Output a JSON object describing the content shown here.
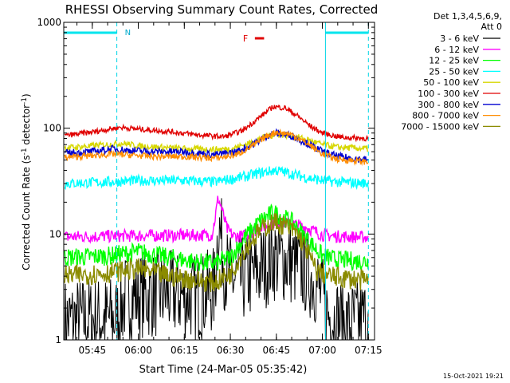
{
  "chart_data": {
    "type": "line",
    "title": "RHESSI Observing Summary Count Rates, Corrected",
    "xlabel": "Start Time (24-Mar-05 05:35:42)",
    "ylabel": "Corrected Count Rate (s⁻¹ detector⁻¹)",
    "ylabel_main": "Corrected Count Rate (s",
    "ylabel_sup1": "-1",
    "ylabel_mid": " detector",
    "ylabel_sup2": "-1",
    "ylabel_end": ")",
    "y_scale": "log",
    "ylim": [
      1,
      1000
    ],
    "xlim": [
      "05:35:42",
      "07:17:00"
    ],
    "x_ticks": [
      "05:45",
      "06:00",
      "06:15",
      "06:30",
      "06:45",
      "07:00",
      "07:15"
    ],
    "y_ticks": [
      "1",
      "10",
      "100",
      "1000"
    ],
    "grid": false,
    "legend_position": "right",
    "legend_header": [
      "Det 1,3,4,5,6,9,",
      "Att 0"
    ],
    "footer_date": "15-Oct-2021 19:21",
    "annotations": {
      "night_label": "N",
      "night_intervals": [
        [
          "05:35:42",
          "05:53:00"
        ],
        [
          "07:01:00",
          "07:15:00"
        ]
      ],
      "flare_label": "F",
      "flare_interval": [
        "06:38:00",
        "06:41:00"
      ]
    },
    "series": [
      {
        "name": "3 - 6 keV",
        "color": "#000000",
        "x": [
          "05:36",
          "05:53",
          "05:56",
          "06:10",
          "06:20",
          "06:25",
          "06:26",
          "06:27",
          "06:28",
          "06:30",
          "06:33",
          "06:38",
          "06:44",
          "06:48",
          "06:52",
          "06:55",
          "06:58",
          "07:02",
          "07:08",
          "07:15"
        ],
        "y": [
          1.5,
          1.6,
          2.6,
          2.7,
          2.5,
          3.0,
          13,
          9,
          5,
          3.8,
          3.6,
          4.2,
          6.0,
          5.7,
          5.0,
          4.3,
          3.5,
          1.7,
          1.4,
          1.6
        ]
      },
      {
        "name": "6 - 12 keV",
        "color": "#ff00ff",
        "x": [
          "05:36",
          "05:53",
          "06:10",
          "06:24",
          "06:25",
          "06:26",
          "06:27",
          "06:28",
          "06:29",
          "06:31",
          "06:34",
          "06:40",
          "06:45",
          "06:50",
          "06:55",
          "07:00",
          "07:05",
          "07:15"
        ],
        "y": [
          9.4,
          9.6,
          9.7,
          9.8,
          14,
          22,
          18,
          14,
          11,
          9.6,
          9.5,
          11.5,
          13,
          12.5,
          11.5,
          9.8,
          9.5,
          9.3
        ]
      },
      {
        "name": "12 - 25 keV",
        "color": "#00ff00",
        "x": [
          "05:36",
          "05:50",
          "06:00",
          "06:10",
          "06:20",
          "06:25",
          "06:30",
          "06:35",
          "06:40",
          "06:44",
          "06:46",
          "06:50",
          "06:55",
          "07:00",
          "07:05",
          "07:15"
        ],
        "y": [
          6.0,
          6.2,
          6.8,
          6.0,
          5.4,
          5.3,
          6.0,
          9.5,
          13.5,
          16,
          15,
          13,
          9,
          6.2,
          5.7,
          5.5
        ]
      },
      {
        "name": "25 - 50 keV",
        "color": "#00ffff",
        "x": [
          "05:36",
          "05:50",
          "06:00",
          "06:15",
          "06:25",
          "06:35",
          "06:40",
          "06:45",
          "06:50",
          "06:55",
          "07:00",
          "07:05",
          "07:15"
        ],
        "y": [
          30,
          31,
          32,
          32,
          31,
          35,
          38,
          40,
          37,
          34,
          32,
          31,
          30
        ]
      },
      {
        "name": "50 - 100 keV",
        "color": "#d7d700",
        "x": [
          "05:36",
          "05:50",
          "05:55",
          "06:00",
          "06:15",
          "06:25",
          "06:30",
          "06:35",
          "06:40",
          "06:45",
          "06:50",
          "06:55",
          "07:00",
          "07:05",
          "07:15"
        ],
        "y": [
          65,
          70,
          72,
          68,
          64,
          63,
          64,
          70,
          80,
          88,
          85,
          78,
          70,
          66,
          64
        ]
      },
      {
        "name": "100 - 300 keV",
        "color": "#e00000",
        "x": [
          "05:36",
          "05:45",
          "05:54",
          "06:00",
          "06:10",
          "06:20",
          "06:28",
          "06:34",
          "06:40",
          "06:44",
          "06:48",
          "06:52",
          "06:56",
          "07:00",
          "07:06",
          "07:15"
        ],
        "y": [
          85,
          92,
          102,
          98,
          93,
          86,
          83,
          95,
          130,
          160,
          155,
          130,
          105,
          90,
          82,
          80
        ]
      },
      {
        "name": "300 - 800 keV",
        "color": "#0000d0",
        "x": [
          "05:36",
          "05:45",
          "05:52",
          "05:56",
          "06:05",
          "06:15",
          "06:25",
          "06:32",
          "06:38",
          "06:42",
          "06:45",
          "06:50",
          "06:55",
          "07:00",
          "07:05",
          "07:15"
        ],
        "y": [
          58,
          60,
          64,
          62,
          60,
          60,
          56,
          60,
          72,
          85,
          90,
          85,
          72,
          60,
          54,
          50
        ]
      },
      {
        "name": "800 - 7000 keV",
        "color": "#ff8c00",
        "x": [
          "05:36",
          "05:45",
          "05:52",
          "05:56",
          "06:05",
          "06:15",
          "06:25",
          "06:32",
          "06:38",
          "06:42",
          "06:45",
          "06:50",
          "06:55",
          "07:00",
          "07:05",
          "07:15"
        ],
        "y": [
          53,
          55,
          57,
          56,
          54,
          54,
          52,
          56,
          70,
          85,
          92,
          87,
          72,
          57,
          51,
          48
        ]
      },
      {
        "name": "7000 - 15000 keV",
        "color": "#8b8b00",
        "x": [
          "05:36",
          "05:50",
          "06:00",
          "06:10",
          "06:20",
          "06:25",
          "06:30",
          "06:35",
          "06:40",
          "06:44",
          "06:48",
          "06:52",
          "06:55",
          "06:58",
          "07:02",
          "07:15"
        ],
        "y": [
          4.0,
          4.3,
          4.7,
          4.0,
          3.6,
          3.5,
          4.2,
          7.5,
          11,
          13,
          12,
          10,
          7,
          4.5,
          4.0,
          3.6
        ]
      }
    ]
  }
}
